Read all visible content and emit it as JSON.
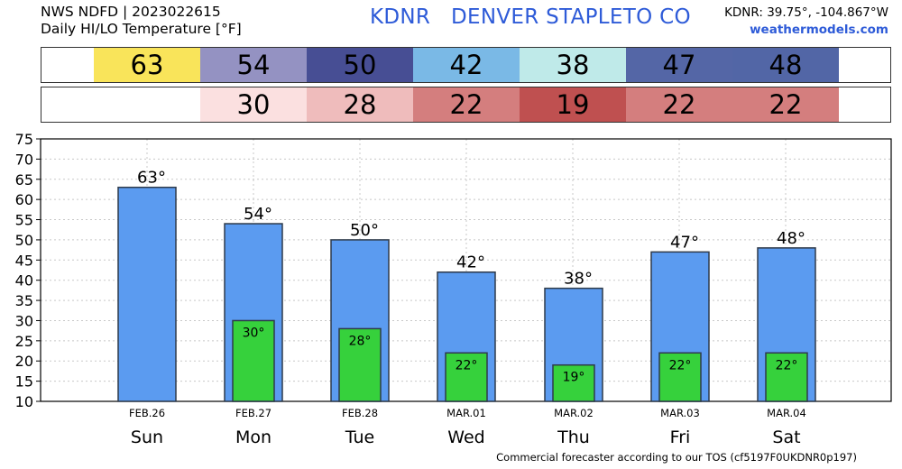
{
  "header": {
    "line1": "NWS NDFD | 2023022615",
    "line2": "Daily HI/LO Temperature [°F]",
    "station": "KDNR   DENVER STAPLETO CO",
    "coords": "KDNR: 39.75°, -104.867°W",
    "site": "weathermodels.com"
  },
  "hi_strip": [
    {
      "text": "63",
      "color": "#f9e45a"
    },
    {
      "text": "54",
      "color": "#9492c2"
    },
    {
      "text": "50",
      "color": "#474e94"
    },
    {
      "text": "42",
      "color": "#7ab9e6"
    },
    {
      "text": "38",
      "color": "#bfeae9"
    },
    {
      "text": "47",
      "color": "#5466a6"
    },
    {
      "text": "48",
      "color": "#5266a6"
    }
  ],
  "lo_strip": [
    {
      "text": "",
      "color": "#ffffff"
    },
    {
      "text": "30",
      "color": "#fbe0e0"
    },
    {
      "text": "28",
      "color": "#efbcbc"
    },
    {
      "text": "22",
      "color": "#d47e7e"
    },
    {
      "text": "19",
      "color": "#bf5050"
    },
    {
      "text": "22",
      "color": "#d47e7e"
    },
    {
      "text": "22",
      "color": "#d47e7e"
    }
  ],
  "chart_data": {
    "type": "bar",
    "ylim": [
      10,
      75
    ],
    "yticks": [
      "10",
      "15",
      "20",
      "25",
      "30",
      "35",
      "40",
      "45",
      "50",
      "55",
      "60",
      "65",
      "70",
      "75"
    ],
    "dates": [
      "FEB.26",
      "FEB.27",
      "FEB.28",
      "MAR.01",
      "MAR.02",
      "MAR.03",
      "MAR.04"
    ],
    "categories": [
      "Sun",
      "Mon",
      "Tue",
      "Wed",
      "Thu",
      "Fri",
      "Sat"
    ],
    "series": [
      {
        "values": [
          63,
          54,
          50,
          42,
          38,
          47,
          48
        ],
        "labels": [
          "63°",
          "54°",
          "50°",
          "42°",
          "38°",
          "47°",
          "48°"
        ],
        "color": "#5b9bf0"
      },
      {
        "values": [
          null,
          30,
          28,
          22,
          19,
          22,
          22
        ],
        "labels": [
          "",
          "30°",
          "28°",
          "22°",
          "19°",
          "22°",
          "22°"
        ],
        "color": "#36d13c"
      }
    ],
    "grid": true
  },
  "footer": "Commercial forecaster according to our TOS (cf5197F0UKDNR0p197)"
}
